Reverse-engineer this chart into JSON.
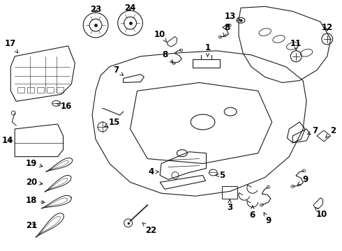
{
  "background_color": "#ffffff",
  "line_color": "#1a1a1a",
  "fig_width": 4.9,
  "fig_height": 3.6,
  "dpi": 100,
  "label_fontsize": 8.5,
  "label_color": "#000000"
}
